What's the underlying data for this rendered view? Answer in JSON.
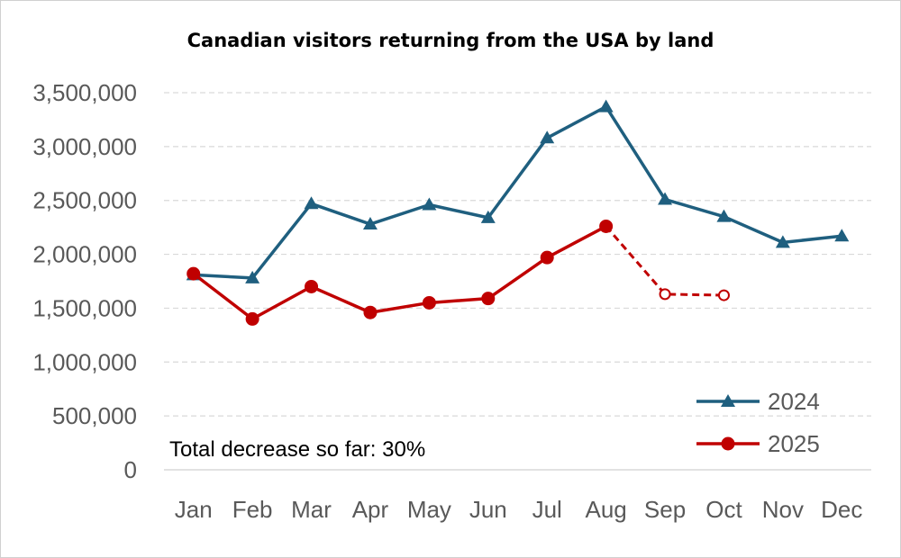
{
  "chart_data": {
    "type": "line",
    "title": "Canadian visitors returning from the USA by land",
    "categories": [
      "Jan",
      "Feb",
      "Mar",
      "Apr",
      "May",
      "Jun",
      "Jul",
      "Aug",
      "Sep",
      "Oct",
      "Nov",
      "Dec"
    ],
    "ylim": [
      0,
      3500000
    ],
    "yticks": [
      "0",
      "500,000",
      "1,000,000",
      "1,500,000",
      "2,000,000",
      "2,500,000",
      "3,000,000",
      "3,500,000"
    ],
    "grid": true,
    "legend_position": "bottom-right",
    "series": [
      {
        "name": "2024",
        "color": "#1f5f7f",
        "marker": "triangle",
        "values": [
          1810000,
          1780000,
          2470000,
          2280000,
          2460000,
          2340000,
          3080000,
          3370000,
          2510000,
          2350000,
          2110000,
          2170000
        ]
      },
      {
        "name": "2025",
        "color": "#c00000",
        "marker": "circle",
        "values": [
          1820000,
          1400000,
          1700000,
          1460000,
          1550000,
          1590000,
          1970000,
          2260000,
          1630000,
          1620000,
          null,
          null
        ],
        "estimated_from": "Sep"
      }
    ],
    "annotation": "Total decrease so far: 30%"
  }
}
